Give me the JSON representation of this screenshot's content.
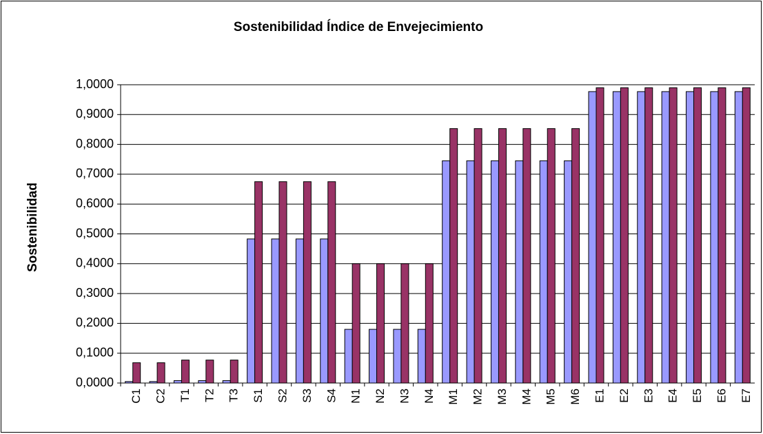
{
  "chart_data": {
    "type": "bar",
    "title": "Sostenibilidad Índice de Envejecimiento",
    "y_label": "Sostenibilidad",
    "categories": [
      "C1",
      "C2",
      "T1",
      "T2",
      "T3",
      "S1",
      "S2",
      "S3",
      "S4",
      "N1",
      "N2",
      "N3",
      "N4",
      "M1",
      "M2",
      "M3",
      "M4",
      "M5",
      "M6",
      "E1",
      "E2",
      "E3",
      "E4",
      "E5",
      "E6",
      "E7"
    ],
    "series": [
      {
        "color": "#9999ff",
        "values": [
          0.005,
          0.005,
          0.008,
          0.008,
          0.008,
          0.483,
          0.483,
          0.483,
          0.483,
          0.18,
          0.18,
          0.18,
          0.18,
          0.745,
          0.745,
          0.745,
          0.745,
          0.745,
          0.745,
          0.977,
          0.977,
          0.977,
          0.977,
          0.977,
          0.977,
          0.977
        ]
      },
      {
        "color": "#993366",
        "values": [
          0.068,
          0.068,
          0.077,
          0.077,
          0.077,
          0.675,
          0.675,
          0.675,
          0.675,
          0.4,
          0.4,
          0.4,
          0.4,
          0.853,
          0.853,
          0.853,
          0.853,
          0.853,
          0.853,
          0.99,
          0.99,
          0.99,
          0.99,
          0.99,
          0.99,
          0.99
        ]
      }
    ],
    "ylim": [
      0,
      1
    ],
    "yticks": [
      {
        "value": 0,
        "label": "0,0000"
      },
      {
        "value": 0.1,
        "label": "0,1000"
      },
      {
        "value": 0.2,
        "label": "0,2000"
      },
      {
        "value": 0.3,
        "label": "0,3000"
      },
      {
        "value": 0.4,
        "label": "0,4000"
      },
      {
        "value": 0.5,
        "label": "0,5000"
      },
      {
        "value": 0.6,
        "label": "0,6000"
      },
      {
        "value": 0.7,
        "label": "0,7000"
      },
      {
        "value": 0.8,
        "label": "0,8000"
      },
      {
        "value": 0.9,
        "label": "0,9000"
      },
      {
        "value": 1,
        "label": "1,0000"
      }
    ],
    "grid": true
  }
}
